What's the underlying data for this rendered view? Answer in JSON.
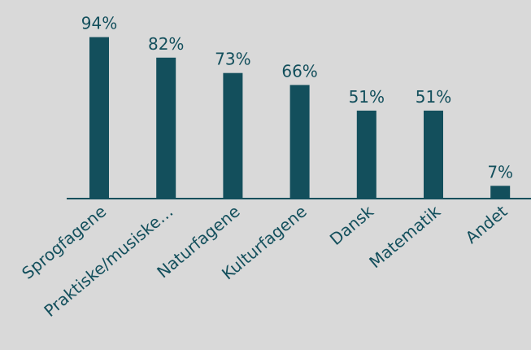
{
  "chart_data": {
    "type": "bar",
    "categories": [
      "Sprogfagene",
      "Praktiske/musiske…",
      "Naturfagene",
      "Kulturfagene",
      "Dansk",
      "Matematik",
      "Andet"
    ],
    "values": [
      94,
      82,
      73,
      66,
      51,
      51,
      7
    ],
    "value_labels": [
      "94%",
      "82%",
      "73%",
      "66%",
      "51%",
      "51%",
      "7%"
    ],
    "color": "#134f5c"
  }
}
